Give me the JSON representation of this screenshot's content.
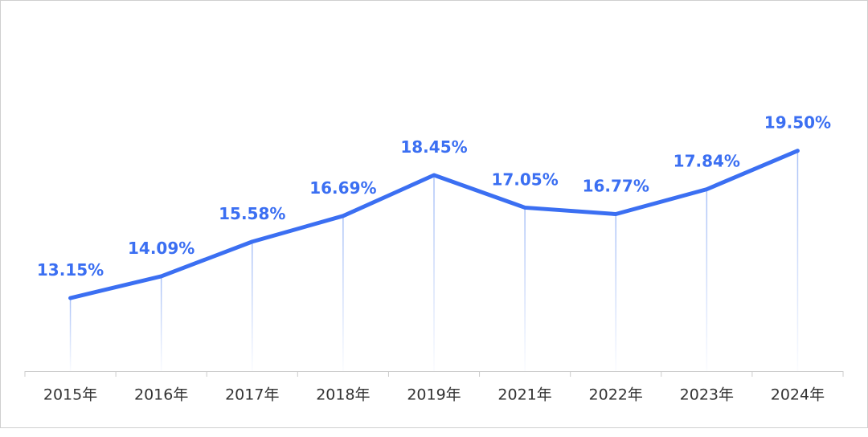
{
  "chart_data": {
    "type": "line",
    "categories": [
      "2015年",
      "2016年",
      "2017年",
      "2018年",
      "2019年",
      "2021年",
      "2022年",
      "2023年",
      "2024年"
    ],
    "values": [
      13.15,
      14.09,
      15.58,
      16.69,
      18.45,
      17.05,
      16.77,
      17.84,
      19.5
    ],
    "value_labels": [
      "13.15%",
      "14.09%",
      "15.58%",
      "16.69%",
      "18.45%",
      "17.05%",
      "16.77%",
      "17.84%",
      "19.50%"
    ],
    "color": "#3b6ff2",
    "ylim": [
      10,
      26
    ]
  }
}
